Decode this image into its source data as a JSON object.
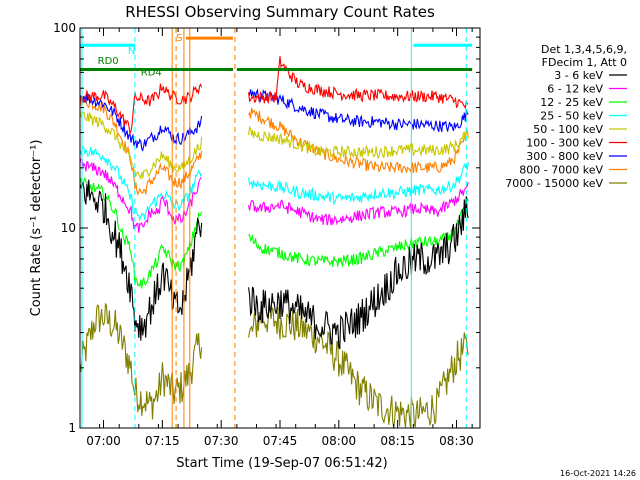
{
  "chart_data": {
    "type": "line",
    "title": "RHESSI Observing Summary Count Rates",
    "xlabel": "Start Time (19-Sep-07 06:51:42)",
    "ylabel": "Count Rate (s⁻¹ detector⁻¹)",
    "yscale": "log",
    "xlim_minutes": [
      -6,
      96
    ],
    "ylim": [
      1,
      100
    ],
    "x_tick_labels": [
      "07:00",
      "07:15",
      "07:30",
      "07:45",
      "08:00",
      "08:15",
      "08:30"
    ],
    "x_tick_minutes": [
      0,
      15,
      30,
      45,
      60,
      75,
      90
    ],
    "y_tick_labels": [
      "1",
      "10",
      "100"
    ],
    "y_tick_values": [
      1,
      10,
      100
    ],
    "legend_header": [
      "Det 1,3,4,5,6,9,",
      "FDecim 1, Att 0"
    ],
    "footer_date": "16-Oct-2021 14:26",
    "flag_labels": [
      {
        "text": "N",
        "color": "#00ffff"
      },
      {
        "text": "RD0",
        "color": "#008000"
      },
      {
        "text": "RD4",
        "color": "#008000"
      },
      {
        "text": "S",
        "color": "#ff8000"
      }
    ],
    "flag_bars": [
      {
        "name": "N",
        "color": "#00ffff",
        "level": 82,
        "segments": [
          [
            -6,
            8
          ],
          [
            79,
            94
          ]
        ]
      },
      {
        "name": "RD0",
        "color": "#008000",
        "level": 62,
        "segments": [
          [
            -6,
            8
          ],
          [
            8,
            33
          ],
          [
            34,
            94
          ]
        ]
      },
      {
        "name": "S",
        "color": "#ff8000",
        "level": 89,
        "segments": [
          [
            21,
            33
          ]
        ]
      }
    ],
    "vertical_markers": [
      {
        "minute": -5.5,
        "color": "#00ffff",
        "style": "solid"
      },
      {
        "minute": 8,
        "color": "#00ffff",
        "style": "dashed"
      },
      {
        "minute": 17.5,
        "color": "#ff8000",
        "style": "solid"
      },
      {
        "minute": 18.5,
        "color": "#ff8000",
        "style": "dashed"
      },
      {
        "minute": 20.5,
        "color": "#ff8000",
        "style": "solid"
      },
      {
        "minute": 22.0,
        "color": "#ff8000",
        "style": "solid"
      },
      {
        "minute": 33.5,
        "color": "#ff8000",
        "style": "dashed"
      },
      {
        "minute": 78.5,
        "color": "#00ffff",
        "style": "solid"
      },
      {
        "minute": 92.5,
        "color": "#00ffff",
        "style": "dashed"
      }
    ],
    "segments_minutes": [
      [
        -6,
        25
      ],
      [
        37,
        93
      ]
    ],
    "series": [
      {
        "name": "3 - 6 keV",
        "color": "#000000",
        "points": [
          [
            -6,
            16
          ],
          [
            0,
            13
          ],
          [
            3,
            9
          ],
          [
            5,
            7
          ],
          [
            7,
            5
          ],
          [
            8,
            3.5
          ],
          [
            10,
            3.2
          ],
          [
            12,
            4
          ],
          [
            14,
            5
          ],
          [
            15,
            6
          ],
          [
            16,
            5.5
          ],
          [
            18,
            4
          ],
          [
            20,
            4
          ],
          [
            22,
            6
          ],
          [
            24,
            10
          ],
          [
            25,
            11
          ],
          [
            37,
            4.5
          ],
          [
            40,
            4
          ],
          [
            45,
            4.3
          ],
          [
            50,
            3.8
          ],
          [
            55,
            3.3
          ],
          [
            60,
            3.0
          ],
          [
            65,
            3.5
          ],
          [
            70,
            4.5
          ],
          [
            75,
            6
          ],
          [
            80,
            7
          ],
          [
            85,
            7
          ],
          [
            88,
            8
          ],
          [
            90,
            9
          ],
          [
            93,
            13
          ]
        ]
      },
      {
        "name": "6 - 12 keV",
        "color": "#ff00ff",
        "points": [
          [
            -6,
            21
          ],
          [
            0,
            19
          ],
          [
            3,
            16
          ],
          [
            5,
            14
          ],
          [
            7,
            12
          ],
          [
            8,
            10
          ],
          [
            10,
            10
          ],
          [
            12,
            12
          ],
          [
            14,
            12
          ],
          [
            15,
            14
          ],
          [
            16,
            13
          ],
          [
            18,
            11
          ],
          [
            20,
            11
          ],
          [
            22,
            13
          ],
          [
            24,
            16
          ],
          [
            25,
            17
          ],
          [
            37,
            13
          ],
          [
            40,
            12.5
          ],
          [
            45,
            13
          ],
          [
            50,
            12
          ],
          [
            55,
            11
          ],
          [
            60,
            11
          ],
          [
            65,
            11.5
          ],
          [
            70,
            12
          ],
          [
            75,
            12
          ],
          [
            80,
            12.5
          ],
          [
            85,
            12
          ],
          [
            88,
            13
          ],
          [
            90,
            14
          ],
          [
            93,
            16
          ]
        ]
      },
      {
        "name": "12 - 25 keV",
        "color": "#00ff00",
        "points": [
          [
            -6,
            17
          ],
          [
            0,
            15
          ],
          [
            3,
            12
          ],
          [
            5,
            9
          ],
          [
            7,
            8
          ],
          [
            8,
            5.5
          ],
          [
            10,
            5.2
          ],
          [
            12,
            6
          ],
          [
            14,
            7
          ],
          [
            15,
            8
          ],
          [
            16,
            7.5
          ],
          [
            18,
            6.5
          ],
          [
            20,
            6.5
          ],
          [
            22,
            8
          ],
          [
            24,
            11
          ],
          [
            25,
            12
          ],
          [
            37,
            9
          ],
          [
            40,
            8
          ],
          [
            45,
            7.5
          ],
          [
            50,
            7
          ],
          [
            55,
            6.8
          ],
          [
            60,
            6.8
          ],
          [
            65,
            7
          ],
          [
            70,
            7.5
          ],
          [
            75,
            8
          ],
          [
            80,
            8.5
          ],
          [
            85,
            8.5
          ],
          [
            88,
            9
          ],
          [
            90,
            10
          ],
          [
            93,
            14
          ]
        ]
      },
      {
        "name": "25 - 50 keV",
        "color": "#00ffff",
        "points": [
          [
            -6,
            25
          ],
          [
            0,
            23
          ],
          [
            3,
            20
          ],
          [
            5,
            17
          ],
          [
            7,
            14
          ],
          [
            8,
            12
          ],
          [
            10,
            11
          ],
          [
            12,
            13
          ],
          [
            14,
            14
          ],
          [
            15,
            15
          ],
          [
            16,
            14.5
          ],
          [
            18,
            13
          ],
          [
            20,
            13
          ],
          [
            22,
            15
          ],
          [
            24,
            18
          ],
          [
            25,
            20
          ],
          [
            37,
            17
          ],
          [
            40,
            16.5
          ],
          [
            45,
            16
          ],
          [
            50,
            15
          ],
          [
            55,
            14.5
          ],
          [
            60,
            14
          ],
          [
            65,
            14.2
          ],
          [
            70,
            15
          ],
          [
            75,
            15
          ],
          [
            80,
            15.5
          ],
          [
            85,
            15.5
          ],
          [
            88,
            16
          ],
          [
            90,
            17
          ],
          [
            93,
            21
          ]
        ]
      },
      {
        "name": "50 - 100 keV",
        "color": "#c8c800",
        "points": [
          [
            -6,
            37
          ],
          [
            0,
            33
          ],
          [
            3,
            29
          ],
          [
            5,
            25
          ],
          [
            7,
            22
          ],
          [
            8,
            19
          ],
          [
            10,
            18
          ],
          [
            12,
            20
          ],
          [
            14,
            22
          ],
          [
            15,
            23
          ],
          [
            16,
            22
          ],
          [
            18,
            20
          ],
          [
            20,
            20
          ],
          [
            22,
            22
          ],
          [
            24,
            25
          ],
          [
            25,
            27
          ],
          [
            37,
            30
          ],
          [
            40,
            29
          ],
          [
            45,
            28
          ],
          [
            50,
            26
          ],
          [
            55,
            24
          ],
          [
            60,
            24
          ],
          [
            65,
            24
          ],
          [
            70,
            24
          ],
          [
            75,
            24.5
          ],
          [
            80,
            24.5
          ],
          [
            85,
            24.5
          ],
          [
            88,
            25
          ],
          [
            90,
            26
          ],
          [
            93,
            30
          ]
        ]
      },
      {
        "name": "100 - 300 keV",
        "color": "#ff0000",
        "points": [
          [
            -6,
            45
          ],
          [
            0,
            46
          ],
          [
            3,
            40
          ],
          [
            5,
            35
          ],
          [
            7,
            31
          ],
          [
            8,
            45
          ],
          [
            10,
            44
          ],
          [
            12,
            43
          ],
          [
            14,
            47
          ],
          [
            15,
            52
          ],
          [
            16,
            48
          ],
          [
            18,
            45
          ],
          [
            20,
            44
          ],
          [
            22,
            45
          ],
          [
            24,
            50
          ],
          [
            25,
            52
          ],
          [
            37,
            45
          ],
          [
            40,
            45
          ],
          [
            44,
            45
          ],
          [
            45,
            68
          ],
          [
            47,
            60
          ],
          [
            50,
            52
          ],
          [
            55,
            49
          ],
          [
            60,
            47
          ],
          [
            65,
            46
          ],
          [
            70,
            46
          ],
          [
            75,
            45.5
          ],
          [
            80,
            45.5
          ],
          [
            85,
            45.5
          ],
          [
            88,
            44
          ],
          [
            90,
            43
          ],
          [
            93,
            40
          ]
        ]
      },
      {
        "name": "300 - 800 keV",
        "color": "#0000ff",
        "points": [
          [
            -6,
            46
          ],
          [
            0,
            42
          ],
          [
            3,
            37
          ],
          [
            5,
            32
          ],
          [
            7,
            28
          ],
          [
            8,
            27
          ],
          [
            10,
            26
          ],
          [
            12,
            28
          ],
          [
            14,
            30
          ],
          [
            15,
            33
          ],
          [
            16,
            31
          ],
          [
            18,
            28
          ],
          [
            20,
            28
          ],
          [
            22,
            30
          ],
          [
            24,
            32
          ],
          [
            25,
            34
          ],
          [
            37,
            48
          ],
          [
            40,
            46
          ],
          [
            45,
            44
          ],
          [
            50,
            40
          ],
          [
            55,
            37
          ],
          [
            60,
            35
          ],
          [
            65,
            34
          ],
          [
            70,
            34
          ],
          [
            75,
            33
          ],
          [
            80,
            33
          ],
          [
            85,
            32.5
          ],
          [
            88,
            32
          ],
          [
            90,
            32
          ],
          [
            93,
            38
          ]
        ]
      },
      {
        "name": "800 - 7000 keV",
        "color": "#ff8000",
        "points": [
          [
            -6,
            44
          ],
          [
            0,
            40
          ],
          [
            3,
            33
          ],
          [
            5,
            27
          ],
          [
            7,
            22
          ],
          [
            8,
            16
          ],
          [
            10,
            15
          ],
          [
            12,
            17
          ],
          [
            14,
            19
          ],
          [
            15,
            20
          ],
          [
            16,
            19
          ],
          [
            18,
            17
          ],
          [
            20,
            17
          ],
          [
            22,
            19
          ],
          [
            24,
            22
          ],
          [
            25,
            24
          ],
          [
            37,
            38
          ],
          [
            40,
            36
          ],
          [
            45,
            32
          ],
          [
            50,
            27
          ],
          [
            55,
            24
          ],
          [
            60,
            22
          ],
          [
            65,
            21
          ],
          [
            70,
            20
          ],
          [
            75,
            20
          ],
          [
            80,
            20
          ],
          [
            85,
            20
          ],
          [
            88,
            21
          ],
          [
            90,
            23
          ],
          [
            93,
            30
          ]
        ]
      },
      {
        "name": "7000 - 15000 keV",
        "color": "#808000",
        "points": [
          [
            -6,
            2.0
          ],
          [
            -2,
            3.5
          ],
          [
            0,
            3.6
          ],
          [
            3,
            3.2
          ],
          [
            5,
            2.6
          ],
          [
            7,
            2.0
          ],
          [
            8,
            1.5
          ],
          [
            10,
            1.4
          ],
          [
            12,
            1.3
          ],
          [
            14,
            1.5
          ],
          [
            15,
            1.8
          ],
          [
            16,
            1.7
          ],
          [
            18,
            1.5
          ],
          [
            20,
            1.6
          ],
          [
            22,
            1.9
          ],
          [
            24,
            2.5
          ],
          [
            25,
            2.8
          ],
          [
            37,
            2.8
          ],
          [
            40,
            3.6
          ],
          [
            45,
            3.4
          ],
          [
            50,
            3.2
          ],
          [
            55,
            2.8
          ],
          [
            60,
            2.2
          ],
          [
            65,
            1.6
          ],
          [
            70,
            1.3
          ],
          [
            75,
            1.2
          ],
          [
            80,
            1.15
          ],
          [
            85,
            1.3
          ],
          [
            88,
            1.8
          ],
          [
            90,
            2.2
          ],
          [
            93,
            2.6
          ]
        ]
      }
    ]
  }
}
